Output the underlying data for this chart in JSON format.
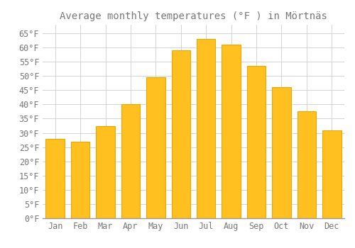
{
  "title": "Average monthly temperatures (°F ) in Mörtnäs",
  "months": [
    "Jan",
    "Feb",
    "Mar",
    "Apr",
    "May",
    "Jun",
    "Jul",
    "Aug",
    "Sep",
    "Oct",
    "Nov",
    "Dec"
  ],
  "values": [
    28,
    27,
    32.5,
    40,
    49.5,
    59,
    63,
    61,
    53.5,
    46,
    37.5,
    31
  ],
  "bar_color": "#FFC020",
  "bar_edge_color": "#E8A800",
  "background_color": "#FFFFFF",
  "grid_color": "#CCCCCC",
  "text_color": "#777777",
  "ylim": [
    0,
    68
  ],
  "yticks": [
    0,
    5,
    10,
    15,
    20,
    25,
    30,
    35,
    40,
    45,
    50,
    55,
    60,
    65
  ],
  "title_fontsize": 10,
  "tick_fontsize": 8.5
}
